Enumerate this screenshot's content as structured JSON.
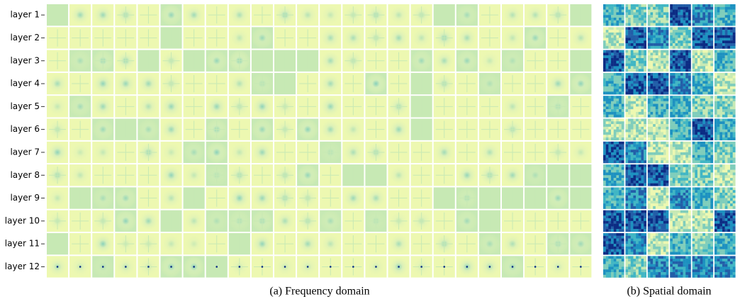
{
  "figure": {
    "rows": [
      "layer 1",
      "layer 2",
      "layer 3",
      "layer 4",
      "layer 5",
      "layer 6",
      "layer 7",
      "layer 8",
      "layer 9",
      "layer 10",
      "layer 11",
      "layer 12"
    ],
    "panels": [
      {
        "caption": "(a) Frequency domain"
      },
      {
        "caption": "(b) Spatial domain"
      }
    ]
  }
}
